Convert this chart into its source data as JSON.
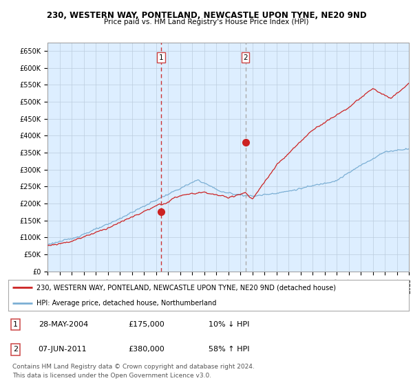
{
  "title1": "230, WESTERN WAY, PONTELAND, NEWCASTLE UPON TYNE, NE20 9ND",
  "title2": "Price paid vs. HM Land Registry's House Price Index (HPI)",
  "ylim": [
    0,
    675000
  ],
  "yticks": [
    0,
    50000,
    100000,
    150000,
    200000,
    250000,
    300000,
    350000,
    400000,
    450000,
    500000,
    550000,
    600000,
    650000
  ],
  "ytick_labels": [
    "£0",
    "£50K",
    "£100K",
    "£150K",
    "£200K",
    "£250K",
    "£300K",
    "£350K",
    "£400K",
    "£450K",
    "£500K",
    "£550K",
    "£600K",
    "£650K"
  ],
  "hpi_color": "#7bafd4",
  "sale_color": "#cc2222",
  "vline1_color": "#cc3333",
  "vline2_color": "#aaaaaa",
  "shade_color": "#ddeeff",
  "bg_color": "#ddeeff",
  "grid_color": "#bbccdd",
  "sale1_x": 2004.41,
  "sale1_y": 175000,
  "sale2_x": 2011.43,
  "sale2_y": 380000,
  "legend_line1": "230, WESTERN WAY, PONTELAND, NEWCASTLE UPON TYNE, NE20 9ND (detached house)",
  "legend_line2": "HPI: Average price, detached house, Northumberland",
  "table_row1": [
    "1",
    "28-MAY-2004",
    "£175,000",
    "10% ↓ HPI"
  ],
  "table_row2": [
    "2",
    "07-JUN-2011",
    "£380,000",
    "58% ↑ HPI"
  ],
  "footnote": "Contains HM Land Registry data © Crown copyright and database right 2024.\nThis data is licensed under the Open Government Licence v3.0.",
  "xmin": 1995,
  "xmax": 2025
}
